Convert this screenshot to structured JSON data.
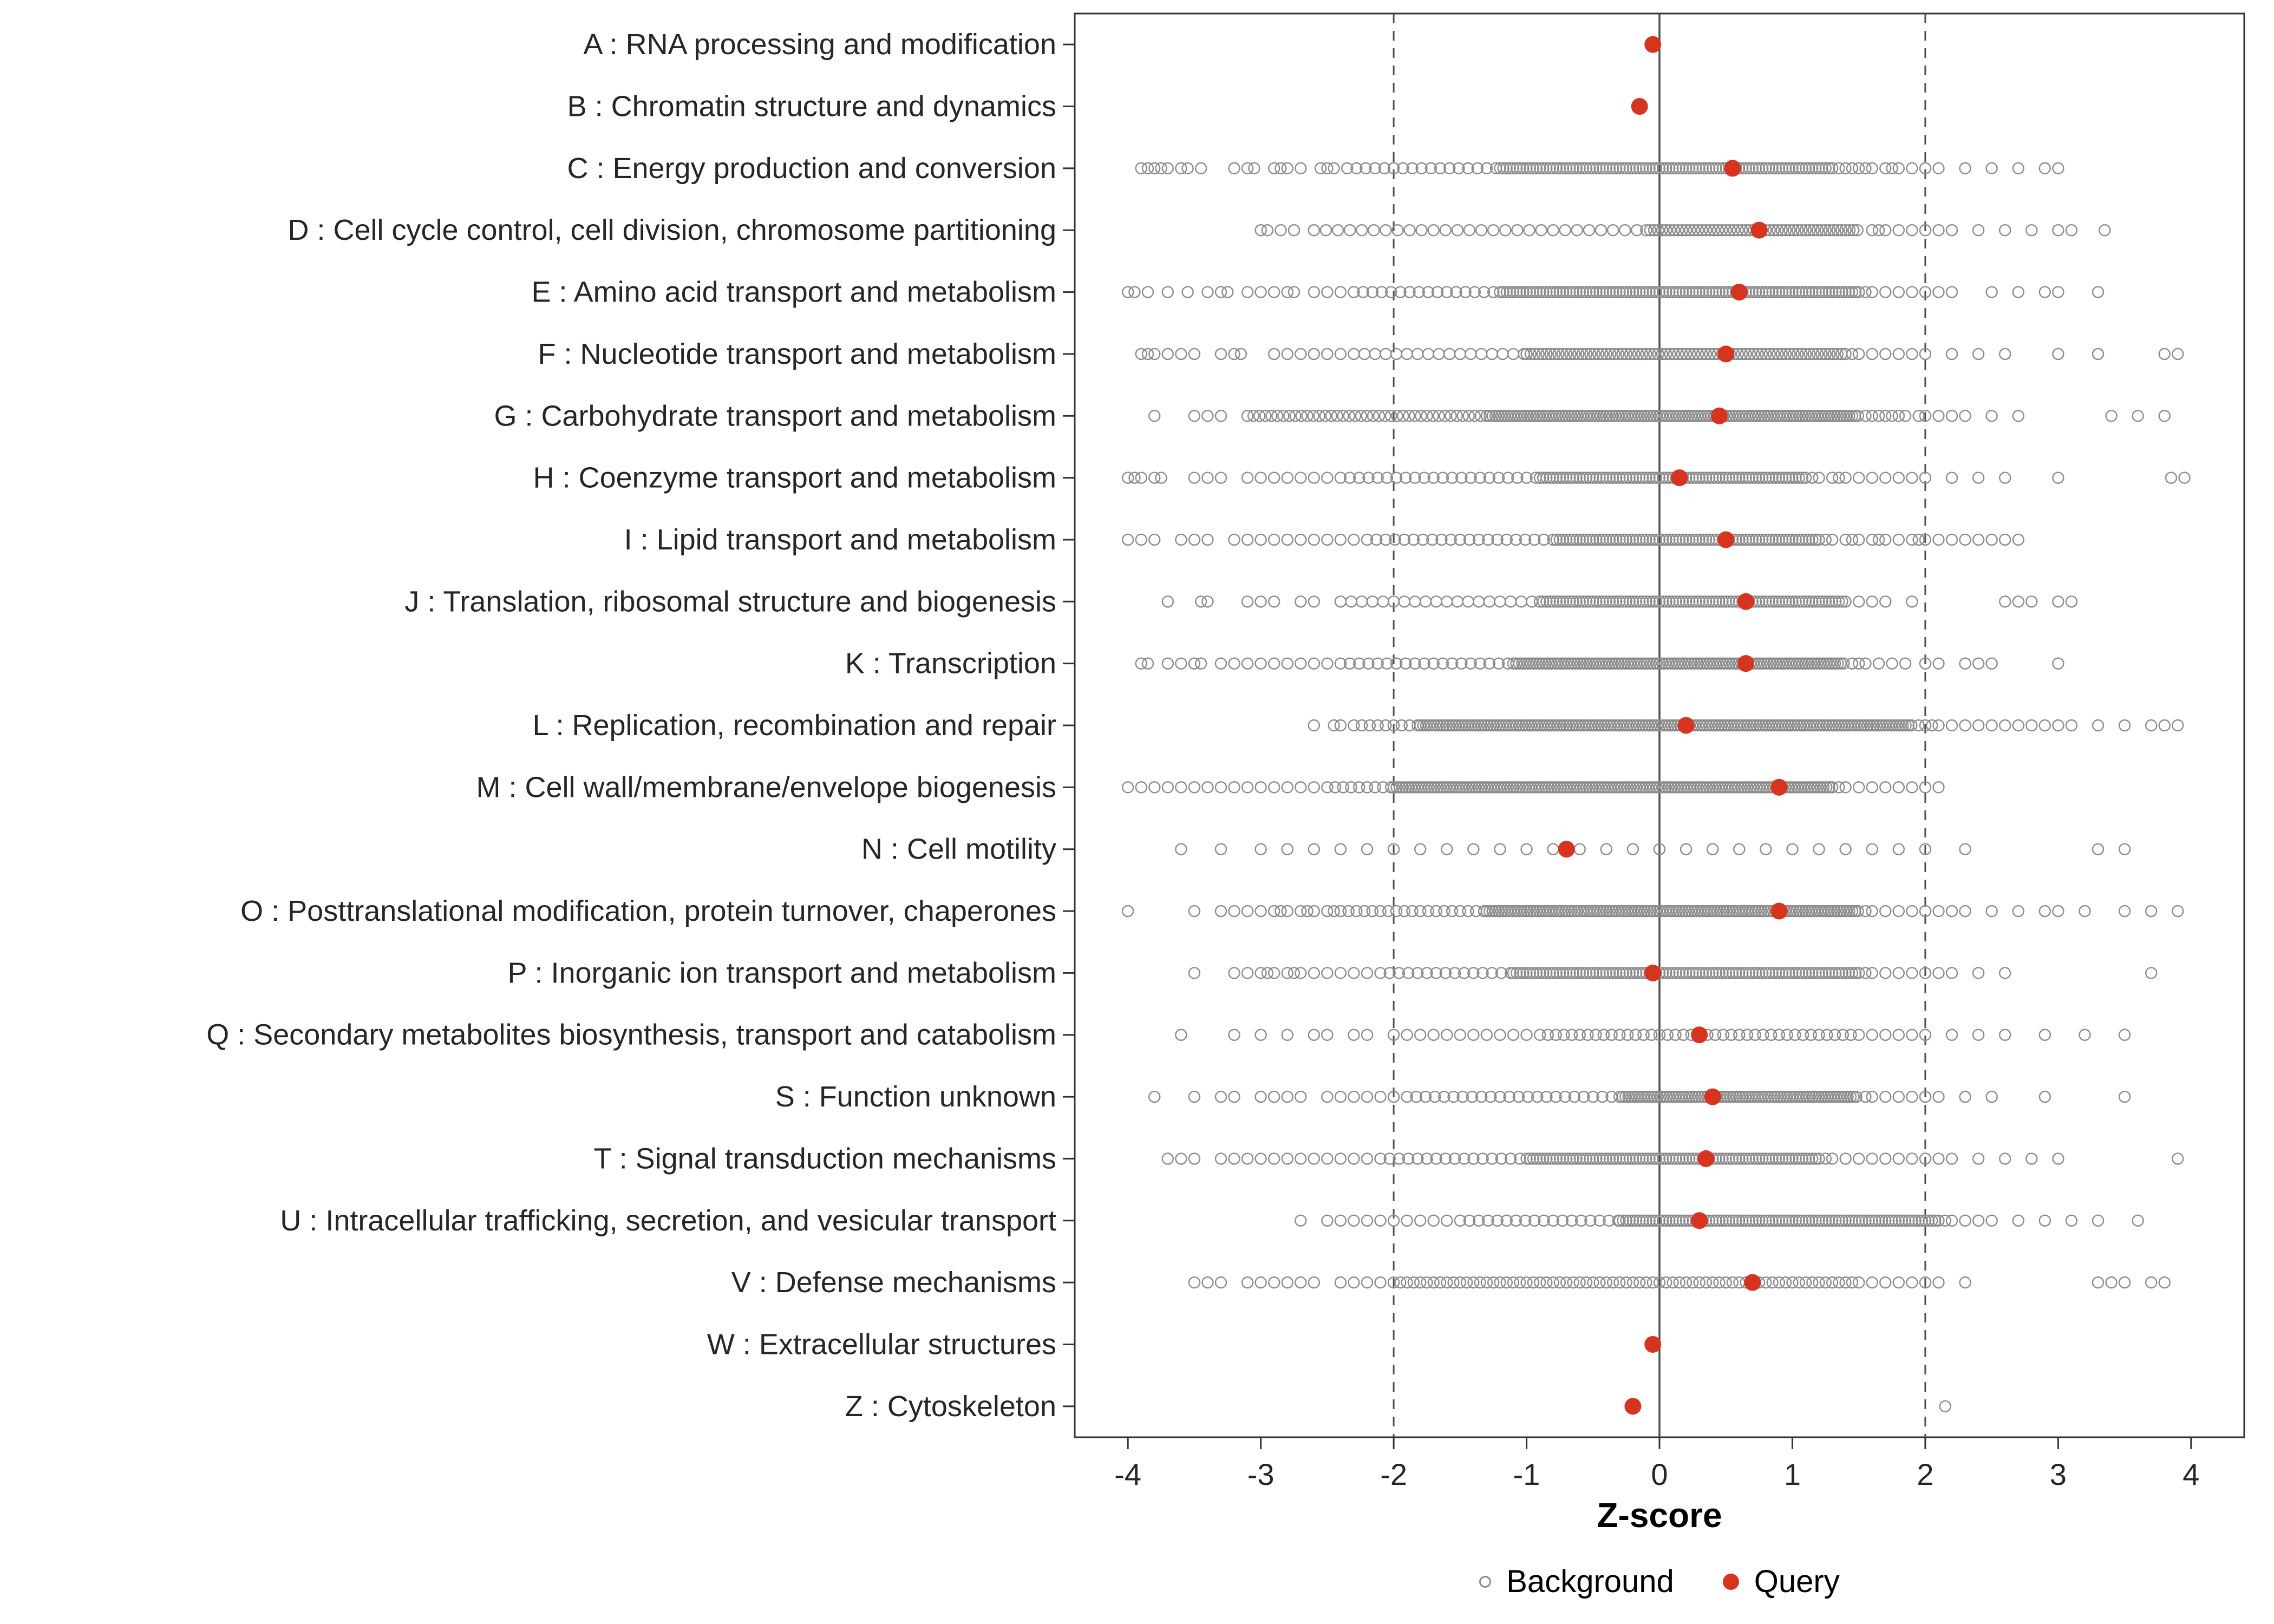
{
  "chart_data": {
    "type": "scatter",
    "title": "",
    "xlabel": "Z-score",
    "xlim": [
      -4.4,
      4.4
    ],
    "x_ticks": [
      -4,
      -3,
      -2,
      -1,
      0,
      1,
      2,
      3,
      4
    ],
    "reference_lines": {
      "solid": [
        0
      ],
      "dashed": [
        -2,
        2
      ]
    },
    "grid": false,
    "legend_position": "bottom",
    "colors": {
      "background": "#8c8c8c",
      "query": "#d7341f",
      "axis_text": "#262626",
      "panel_border": "#333333",
      "ref_line": "#4d4d4d"
    },
    "legend": [
      {
        "label": "Background",
        "marker": "open-circle",
        "color": "#8c8c8c"
      },
      {
        "label": "Query",
        "marker": "filled-circle",
        "color": "#d7341f"
      }
    ],
    "categories": [
      {
        "label": "A : RNA processing and modification",
        "query": -0.05,
        "bands": [],
        "points": []
      },
      {
        "label": "B : Chromatin structure and dynamics",
        "query": -0.15,
        "bands": [],
        "points": []
      },
      {
        "label": "C : Energy production and conversion",
        "query": 0.55,
        "bands": [
          [
            -2.35,
            -1.2,
            0.07
          ],
          [
            -1.2,
            1.3,
            0.025
          ]
        ],
        "points": [
          -3.9,
          -3.85,
          -3.8,
          -3.75,
          -3.7,
          -3.6,
          -3.55,
          -3.45,
          -3.2,
          -3.1,
          -3.05,
          -2.9,
          -2.85,
          -2.8,
          -2.7,
          -2.55,
          -2.5,
          -2.45,
          1.35,
          1.4,
          1.45,
          1.5,
          1.55,
          1.6,
          1.7,
          1.75,
          1.8,
          1.9,
          2.0,
          2.1,
          2.3,
          2.5,
          2.7,
          2.9,
          3.0
        ]
      },
      {
        "label": "D : Cell cycle control, cell division, chromosome partitioning",
        "query": 0.75,
        "bands": [
          [
            -2.6,
            -0.1,
            0.09
          ],
          [
            -0.1,
            1.5,
            0.03
          ]
        ],
        "points": [
          -3.0,
          -2.95,
          -2.85,
          -2.75,
          1.6,
          1.65,
          1.7,
          1.8,
          1.9,
          2.0,
          2.1,
          2.2,
          2.4,
          2.6,
          2.8,
          3.0,
          3.1,
          3.35
        ]
      },
      {
        "label": "E : Amino acid transport and metabolism",
        "query": 0.6,
        "bands": [
          [
            -2.3,
            -1.2,
            0.07
          ],
          [
            -1.2,
            1.5,
            0.025
          ]
        ],
        "points": [
          -4.0,
          -3.95,
          -3.85,
          -3.7,
          -3.55,
          -3.4,
          -3.3,
          -3.25,
          -3.1,
          -3.0,
          -2.9,
          -2.8,
          -2.75,
          -2.6,
          -2.5,
          -2.4,
          1.55,
          1.6,
          1.7,
          1.8,
          1.9,
          2.0,
          2.1,
          2.2,
          2.5,
          2.7,
          2.9,
          3.0,
          3.3
        ]
      },
      {
        "label": "F : Nucleotide transport and metabolism",
        "query": 0.5,
        "bands": [
          [
            -2.3,
            -1.0,
            0.08
          ],
          [
            -1.0,
            1.4,
            0.03
          ]
        ],
        "points": [
          -3.9,
          -3.85,
          -3.8,
          -3.7,
          -3.6,
          -3.5,
          -3.3,
          -3.2,
          -3.15,
          -2.9,
          -2.8,
          -2.7,
          -2.6,
          -2.5,
          -2.4,
          1.45,
          1.5,
          1.6,
          1.7,
          1.8,
          1.9,
          2.0,
          2.2,
          2.4,
          2.6,
          3.0,
          3.3,
          3.8,
          3.9
        ]
      },
      {
        "label": "G : Carbohydrate transport and metabolism",
        "query": 0.45,
        "bands": [
          [
            -3.1,
            -1.3,
            0.045
          ],
          [
            -1.3,
            1.5,
            0.022
          ]
        ],
        "points": [
          -3.8,
          -3.5,
          -3.4,
          -3.3,
          1.55,
          1.6,
          1.65,
          1.7,
          1.75,
          1.8,
          1.85,
          1.95,
          2.0,
          2.1,
          2.2,
          2.3,
          2.5,
          2.7,
          3.4,
          3.6,
          3.8
        ]
      },
      {
        "label": "H : Coenzyme transport and metabolism",
        "query": 0.15,
        "bands": [
          [
            -2.4,
            -0.9,
            0.07
          ],
          [
            -0.9,
            1.1,
            0.025
          ]
        ],
        "points": [
          -4.0,
          -3.95,
          -3.9,
          -3.8,
          -3.75,
          -3.5,
          -3.4,
          -3.3,
          -3.1,
          -3.0,
          -2.9,
          -2.8,
          -2.7,
          -2.6,
          -2.5,
          1.15,
          1.2,
          1.3,
          1.35,
          1.4,
          1.5,
          1.6,
          1.7,
          1.8,
          1.9,
          2.0,
          2.2,
          2.4,
          2.6,
          3.0,
          3.85,
          3.95
        ]
      },
      {
        "label": "I : Lipid transport and metabolism",
        "query": 0.5,
        "bands": [
          [
            -2.2,
            -0.8,
            0.07
          ],
          [
            -0.8,
            1.2,
            0.025
          ]
        ],
        "points": [
          -4.0,
          -3.9,
          -3.8,
          -3.6,
          -3.5,
          -3.4,
          -3.2,
          -3.1,
          -3.0,
          -2.9,
          -2.8,
          -2.7,
          -2.6,
          -2.5,
          -2.4,
          -2.3,
          1.25,
          1.3,
          1.4,
          1.45,
          1.5,
          1.6,
          1.65,
          1.7,
          1.8,
          1.9,
          1.95,
          2.0,
          2.1,
          2.2,
          2.3,
          2.4,
          2.5,
          2.6,
          2.7
        ]
      },
      {
        "label": "J : Translation, ribosomal structure and biogenesis",
        "query": 0.65,
        "bands": [
          [
            -2.4,
            -0.9,
            0.08
          ],
          [
            -0.9,
            1.4,
            0.025
          ]
        ],
        "points": [
          -3.7,
          -3.45,
          -3.4,
          -3.1,
          -3.0,
          -2.9,
          -2.7,
          -2.6,
          1.5,
          1.6,
          1.7,
          1.9,
          2.6,
          2.7,
          2.8,
          3.0,
          3.1
        ]
      },
      {
        "label": "K : Transcription",
        "query": 0.65,
        "bands": [
          [
            -2.4,
            -1.1,
            0.07
          ],
          [
            -1.1,
            1.4,
            0.022
          ]
        ],
        "points": [
          -3.9,
          -3.85,
          -3.7,
          -3.6,
          -3.5,
          -3.45,
          -3.3,
          -3.2,
          -3.1,
          -3.0,
          -2.9,
          -2.8,
          -2.7,
          -2.6,
          -2.5,
          1.45,
          1.5,
          1.55,
          1.65,
          1.75,
          1.85,
          2.0,
          2.1,
          2.3,
          2.4,
          2.5,
          3.0
        ]
      },
      {
        "label": "L : Replication, recombination and repair",
        "query": 0.2,
        "bands": [
          [
            -2.3,
            -1.8,
            0.06
          ],
          [
            -1.8,
            1.9,
            0.022
          ]
        ],
        "points": [
          -2.6,
          -2.45,
          -2.4,
          1.95,
          2.0,
          2.05,
          2.1,
          2.2,
          2.3,
          2.4,
          2.5,
          2.6,
          2.7,
          2.8,
          2.9,
          3.0,
          3.1,
          3.3,
          3.5,
          3.7,
          3.8,
          3.9
        ]
      },
      {
        "label": "M : Cell wall/membrane/envelope biogenesis",
        "query": 0.9,
        "bands": [
          [
            -2.5,
            -2.0,
            0.06
          ],
          [
            -2.0,
            1.3,
            0.022
          ]
        ],
        "points": [
          -4.0,
          -3.9,
          -3.8,
          -3.7,
          -3.6,
          -3.5,
          -3.4,
          -3.3,
          -3.2,
          -3.1,
          -3.0,
          -2.9,
          -2.8,
          -2.7,
          -2.6,
          1.35,
          1.4,
          1.5,
          1.6,
          1.7,
          1.8,
          1.9,
          2.0,
          2.1
        ]
      },
      {
        "label": "N : Cell motility",
        "query": -0.7,
        "bands": [],
        "points": [
          -3.6,
          -3.3,
          -3.0,
          -2.8,
          -2.6,
          -2.4,
          -2.2,
          -2.0,
          -1.8,
          -1.6,
          -1.4,
          -1.2,
          -1.0,
          -0.8,
          -0.6,
          -0.4,
          -0.2,
          0.0,
          0.2,
          0.4,
          0.6,
          0.8,
          1.0,
          1.2,
          1.4,
          1.6,
          1.8,
          2.0,
          2.3,
          3.3,
          3.5
        ]
      },
      {
        "label": "O : Posttranslational modification, protein turnover, chaperones",
        "query": 0.9,
        "bands": [
          [
            -2.4,
            -1.3,
            0.06
          ],
          [
            -1.3,
            1.5,
            0.022
          ]
        ],
        "points": [
          -4.0,
          -3.5,
          -3.3,
          -3.2,
          -3.1,
          -3.0,
          -2.9,
          -2.85,
          -2.8,
          -2.7,
          -2.65,
          -2.6,
          -2.5,
          -2.45,
          1.55,
          1.6,
          1.7,
          1.8,
          1.9,
          2.0,
          2.1,
          2.2,
          2.3,
          2.5,
          2.7,
          2.9,
          3.0,
          3.2,
          3.5,
          3.7,
          3.9
        ]
      },
      {
        "label": "P : Inorganic ion transport and metabolism",
        "query": -0.05,
        "bands": [
          [
            -2.1,
            -1.1,
            0.07
          ],
          [
            -1.1,
            1.5,
            0.025
          ]
        ],
        "points": [
          -3.5,
          -3.2,
          -3.1,
          -3.0,
          -2.95,
          -2.9,
          -2.8,
          -2.75,
          -2.7,
          -2.6,
          -2.5,
          -2.4,
          -2.3,
          -2.2,
          1.55,
          1.6,
          1.7,
          1.8,
          1.9,
          2.0,
          2.1,
          2.2,
          2.4,
          2.6,
          3.7
        ]
      },
      {
        "label": "Q : Secondary metabolites biosynthesis, transport and catabolism",
        "query": 0.3,
        "bands": [
          [
            -0.9,
            1.5,
            0.06
          ]
        ],
        "points": [
          -3.6,
          -3.2,
          -3.0,
          -2.8,
          -2.6,
          -2.5,
          -2.3,
          -2.2,
          -2.0,
          -1.9,
          -1.8,
          -1.7,
          -1.6,
          -1.5,
          -1.4,
          -1.3,
          -1.2,
          -1.1,
          -1.0,
          1.6,
          1.7,
          1.8,
          1.9,
          2.0,
          2.2,
          2.4,
          2.6,
          2.9,
          3.2,
          3.5
        ]
      },
      {
        "label": "S : Function unknown",
        "query": 0.4,
        "bands": [
          [
            -1.9,
            -0.3,
            0.07
          ],
          [
            -0.3,
            1.5,
            0.022
          ]
        ],
        "points": [
          -3.8,
          -3.5,
          -3.3,
          -3.2,
          -3.0,
          -2.9,
          -2.8,
          -2.7,
          -2.5,
          -2.4,
          -2.3,
          -2.2,
          -2.1,
          -2.0,
          1.55,
          1.6,
          1.7,
          1.8,
          1.9,
          2.0,
          2.1,
          2.3,
          2.5,
          2.9,
          3.5
        ]
      },
      {
        "label": "T : Signal transduction mechanisms",
        "query": 0.35,
        "bands": [
          [
            -2.1,
            -1.0,
            0.07
          ],
          [
            -1.0,
            1.2,
            0.025
          ]
        ],
        "points": [
          -3.7,
          -3.6,
          -3.5,
          -3.3,
          -3.2,
          -3.1,
          -3.0,
          -2.9,
          -2.8,
          -2.7,
          -2.6,
          -2.5,
          -2.4,
          -2.3,
          -2.2,
          1.25,
          1.3,
          1.4,
          1.5,
          1.6,
          1.7,
          1.8,
          1.9,
          2.0,
          2.1,
          2.2,
          2.4,
          2.6,
          2.8,
          3.0,
          3.9
        ]
      },
      {
        "label": "U : Intracellular trafficking, secretion, and vesicular transport",
        "query": 0.3,
        "bands": [
          [
            -1.5,
            -0.3,
            0.07
          ],
          [
            -0.3,
            2.1,
            0.025
          ]
        ],
        "points": [
          -2.7,
          -2.5,
          -2.4,
          -2.3,
          -2.2,
          -2.1,
          -2.0,
          -1.9,
          -1.8,
          -1.7,
          -1.6,
          2.15,
          2.2,
          2.3,
          2.4,
          2.5,
          2.7,
          2.9,
          3.1,
          3.3,
          3.6
        ]
      },
      {
        "label": "V : Defense mechanisms",
        "query": 0.7,
        "bands": [
          [
            -2.0,
            1.5,
            0.05
          ]
        ],
        "points": [
          -3.5,
          -3.4,
          -3.3,
          -3.1,
          -3.0,
          -2.9,
          -2.8,
          -2.7,
          -2.6,
          -2.4,
          -2.3,
          -2.2,
          -2.1,
          1.6,
          1.7,
          1.8,
          1.9,
          2.0,
          2.1,
          2.3,
          3.3,
          3.4,
          3.5,
          3.7,
          3.8
        ]
      },
      {
        "label": "W : Extracellular structures",
        "query": -0.05,
        "bands": [],
        "points": []
      },
      {
        "label": "Z : Cytoskeleton",
        "query": -0.2,
        "bands": [],
        "points": [
          2.15
        ]
      }
    ]
  }
}
